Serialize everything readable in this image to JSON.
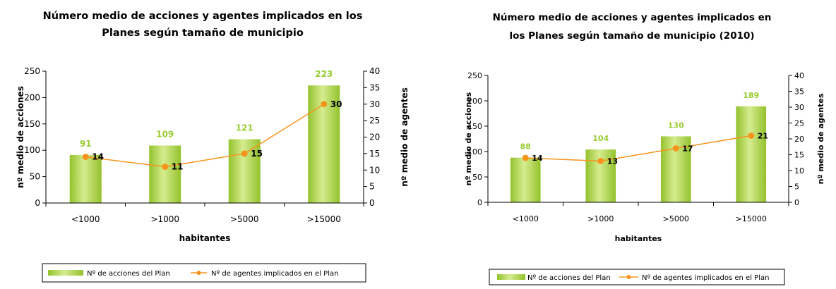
{
  "colors": {
    "bar_light": "#d6ec8f",
    "bar_dark": "#93c22c",
    "bar_value_label": "#99cc33",
    "line": "#f7941d",
    "axis": "#000000"
  },
  "chart_data": [
    {
      "type": "bar",
      "title_lines": [
        "Número medio de acciones y agentes implicados en los",
        "Planes según tamaño de municipio"
      ],
      "xlabel": "habitantes",
      "ylabel": "nº medio de acciones",
      "y2label": "nº medio de agentes",
      "categories": [
        "<1000",
        ">1000",
        ">5000",
        ">15000"
      ],
      "ylim": [
        0,
        250
      ],
      "yticks": [
        "0",
        "50",
        "100",
        "150",
        "200",
        "250"
      ],
      "y2lim": [
        0,
        40
      ],
      "y2ticks": [
        "0",
        "5",
        "10",
        "15",
        "20",
        "25",
        "30",
        "35",
        "40"
      ],
      "series": [
        {
          "name": "Nº de acciones del Plan",
          "kind": "bar",
          "axis": "left",
          "values": [
            91,
            109,
            121,
            223
          ],
          "labels": [
            "91",
            "109",
            "121",
            "223"
          ]
        },
        {
          "name": "Nº de agentes implicados en el Plan",
          "kind": "line",
          "axis": "right",
          "values": [
            14,
            11,
            15,
            30
          ],
          "labels": [
            "14",
            "11",
            "15",
            "30"
          ]
        }
      ],
      "legend_position": "bottom",
      "grid": false
    },
    {
      "type": "bar",
      "title_lines": [
        "Número medio de acciones y agentes implicados en",
        "los Planes según tamaño de municipio (2010)"
      ],
      "xlabel": "habitantes",
      "ylabel": "nº medio de acciones",
      "y2label": "nº medio de agentes",
      "categories": [
        "<1000",
        ">1000",
        ">5000",
        ">15000"
      ],
      "ylim": [
        0,
        250
      ],
      "yticks": [
        "0",
        "50",
        "100",
        "150",
        "200",
        "250"
      ],
      "y2lim": [
        0,
        40
      ],
      "y2ticks": [
        "0",
        "5",
        "10",
        "15",
        "20",
        "25",
        "30",
        "35",
        "40"
      ],
      "series": [
        {
          "name": "Nº de acciones del Plan",
          "kind": "bar",
          "axis": "left",
          "values": [
            88,
            104,
            130,
            189
          ],
          "labels": [
            "88",
            "104",
            "130",
            "189"
          ]
        },
        {
          "name": "Nº de agentes implicados en el Plan",
          "kind": "line",
          "axis": "right",
          "values": [
            14,
            13,
            17,
            21
          ],
          "labels": [
            "14",
            "13",
            "17",
            "21"
          ]
        }
      ],
      "legend_position": "bottom",
      "grid": false
    }
  ]
}
